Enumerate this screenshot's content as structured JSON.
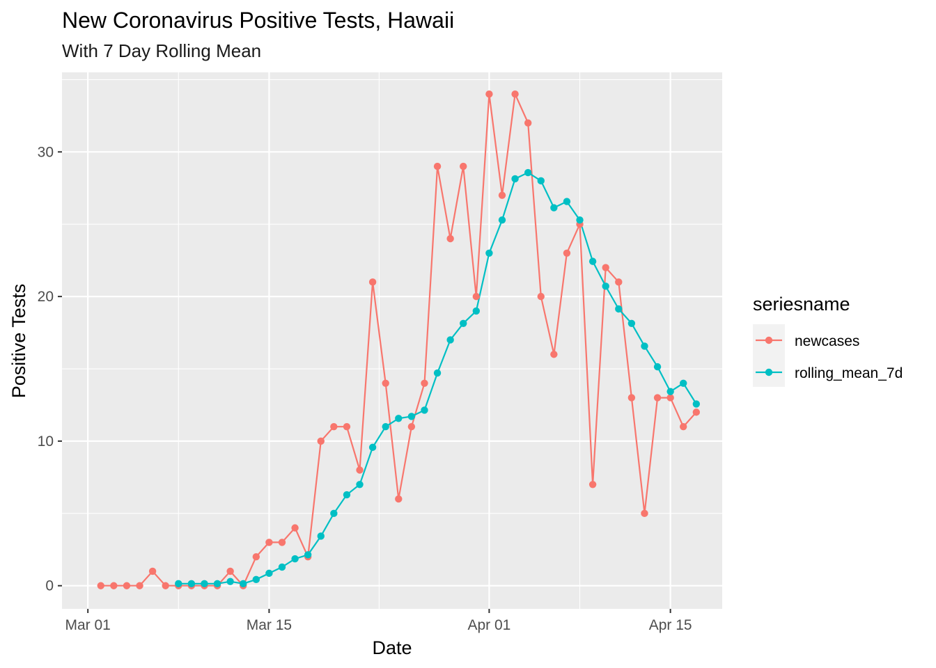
{
  "chart_data": {
    "type": "line",
    "title": "New Coronavirus Positive Tests, Hawaii",
    "subtitle": "With 7 Day Rolling Mean",
    "xlabel": "Date",
    "ylabel": "Positive Tests",
    "x_type": "date",
    "x_start": "2020-02-29",
    "xlim": [
      "2020-02-28",
      "2020-04-19"
    ],
    "ylim": [
      -1.6,
      35.5
    ],
    "x_ticks": [
      {
        "date": "2020-03-01",
        "label": "Mar 01"
      },
      {
        "date": "2020-03-15",
        "label": "Mar 15"
      },
      {
        "date": "2020-04-01",
        "label": "Apr 01"
      },
      {
        "date": "2020-04-15",
        "label": "Apr 15"
      }
    ],
    "y_ticks": [
      0,
      10,
      20,
      30
    ],
    "grid": true,
    "legend": {
      "title": "seriesname",
      "position": "right"
    },
    "series": [
      {
        "name": "newcases",
        "color": "#F8766D",
        "points": [
          [
            "2020-03-02",
            0
          ],
          [
            "2020-03-03",
            0
          ],
          [
            "2020-03-04",
            0
          ],
          [
            "2020-03-05",
            0
          ],
          [
            "2020-03-06",
            1
          ],
          [
            "2020-03-07",
            0
          ],
          [
            "2020-03-08",
            0
          ],
          [
            "2020-03-09",
            0
          ],
          [
            "2020-03-10",
            0
          ],
          [
            "2020-03-11",
            0
          ],
          [
            "2020-03-12",
            1
          ],
          [
            "2020-03-13",
            0
          ],
          [
            "2020-03-14",
            2
          ],
          [
            "2020-03-15",
            3
          ],
          [
            "2020-03-16",
            3
          ],
          [
            "2020-03-17",
            4
          ],
          [
            "2020-03-18",
            2
          ],
          [
            "2020-03-19",
            10
          ],
          [
            "2020-03-20",
            11
          ],
          [
            "2020-03-21",
            11
          ],
          [
            "2020-03-22",
            8
          ],
          [
            "2020-03-23",
            21
          ],
          [
            "2020-03-24",
            14
          ],
          [
            "2020-03-25",
            6
          ],
          [
            "2020-03-26",
            11
          ],
          [
            "2020-03-27",
            14
          ],
          [
            "2020-03-28",
            29
          ],
          [
            "2020-03-29",
            24
          ],
          [
            "2020-03-30",
            29
          ],
          [
            "2020-03-31",
            20
          ],
          [
            "2020-04-01",
            34
          ],
          [
            "2020-04-02",
            27
          ],
          [
            "2020-04-03",
            34
          ],
          [
            "2020-04-04",
            32
          ],
          [
            "2020-04-05",
            20
          ],
          [
            "2020-04-06",
            16
          ],
          [
            "2020-04-07",
            23
          ],
          [
            "2020-04-08",
            25
          ],
          [
            "2020-04-09",
            7
          ],
          [
            "2020-04-10",
            22
          ],
          [
            "2020-04-11",
            21
          ],
          [
            "2020-04-12",
            13
          ],
          [
            "2020-04-13",
            5
          ],
          [
            "2020-04-14",
            13
          ],
          [
            "2020-04-15",
            13
          ],
          [
            "2020-04-16",
            11
          ],
          [
            "2020-04-17",
            12
          ]
        ]
      },
      {
        "name": "rolling_mean_7d",
        "color": "#00BFC4",
        "points": [
          [
            "2020-03-08",
            0.14
          ],
          [
            "2020-03-09",
            0.14
          ],
          [
            "2020-03-10",
            0.14
          ],
          [
            "2020-03-11",
            0.14
          ],
          [
            "2020-03-12",
            0.29
          ],
          [
            "2020-03-13",
            0.14
          ],
          [
            "2020-03-14",
            0.43
          ],
          [
            "2020-03-15",
            0.86
          ],
          [
            "2020-03-16",
            1.29
          ],
          [
            "2020-03-17",
            1.86
          ],
          [
            "2020-03-18",
            2.14
          ],
          [
            "2020-03-19",
            3.43
          ],
          [
            "2020-03-20",
            5.0
          ],
          [
            "2020-03-21",
            6.29
          ],
          [
            "2020-03-22",
            7.0
          ],
          [
            "2020-03-23",
            9.57
          ],
          [
            "2020-03-24",
            11.0
          ],
          [
            "2020-03-25",
            11.57
          ],
          [
            "2020-03-26",
            11.71
          ],
          [
            "2020-03-27",
            12.14
          ],
          [
            "2020-03-28",
            14.71
          ],
          [
            "2020-03-29",
            17.0
          ],
          [
            "2020-03-30",
            18.14
          ],
          [
            "2020-03-31",
            19.0
          ],
          [
            "2020-04-01",
            23.0
          ],
          [
            "2020-04-02",
            25.29
          ],
          [
            "2020-04-03",
            28.14
          ],
          [
            "2020-04-04",
            28.57
          ],
          [
            "2020-04-05",
            28.0
          ],
          [
            "2020-04-06",
            26.14
          ],
          [
            "2020-04-07",
            26.57
          ],
          [
            "2020-04-08",
            25.29
          ],
          [
            "2020-04-09",
            22.43
          ],
          [
            "2020-04-10",
            20.71
          ],
          [
            "2020-04-11",
            19.14
          ],
          [
            "2020-04-12",
            18.14
          ],
          [
            "2020-04-13",
            16.57
          ],
          [
            "2020-04-14",
            15.14
          ],
          [
            "2020-04-15",
            13.43
          ],
          [
            "2020-04-16",
            14.0
          ],
          [
            "2020-04-17",
            12.57
          ]
        ]
      }
    ]
  }
}
